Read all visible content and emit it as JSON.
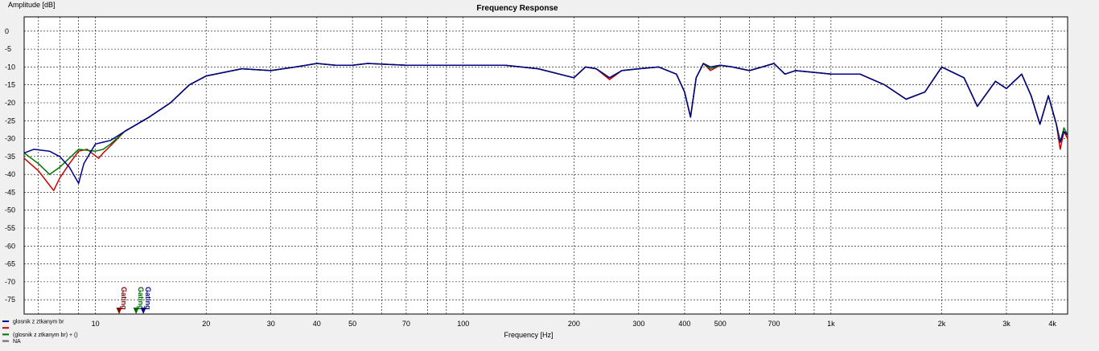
{
  "chart_data": {
    "type": "line",
    "title": "Frequency Response",
    "xlabel": "Frequency [Hz]",
    "ylabel": "Amplitude [dB]",
    "x_scale": "log",
    "xlim": [
      6.4,
      4400
    ],
    "ylim": [
      -79,
      4
    ],
    "grid": true,
    "x_tick_labels": [
      {
        "x": 10,
        "label": "10"
      },
      {
        "x": 20,
        "label": "20"
      },
      {
        "x": 30,
        "label": "30"
      },
      {
        "x": 40,
        "label": "40"
      },
      {
        "x": 50,
        "label": "50"
      },
      {
        "x": 70,
        "label": "70"
      },
      {
        "x": 100,
        "label": "100"
      },
      {
        "x": 200,
        "label": "200"
      },
      {
        "x": 300,
        "label": "300"
      },
      {
        "x": 400,
        "label": "400"
      },
      {
        "x": 500,
        "label": "500"
      },
      {
        "x": 700,
        "label": "700"
      },
      {
        "x": 1000,
        "label": "1k"
      },
      {
        "x": 2000,
        "label": "2k"
      },
      {
        "x": 3000,
        "label": "3k"
      },
      {
        "x": 4000,
        "label": "4k"
      }
    ],
    "y_ticks": [
      0,
      -5,
      -10,
      -15,
      -20,
      -25,
      -30,
      -35,
      -40,
      -45,
      -50,
      -55,
      -60,
      -65,
      -70,
      -75
    ],
    "series": [
      {
        "name": "",
        "color": "#cc0000",
        "points": [
          [
            6.4,
            -35.5
          ],
          [
            7,
            -39
          ],
          [
            7.5,
            -43
          ],
          [
            7.7,
            -44.5
          ],
          [
            8,
            -41
          ],
          [
            8.5,
            -37
          ],
          [
            9,
            -33.5
          ],
          [
            9.5,
            -33
          ],
          [
            10.2,
            -35.5
          ],
          [
            10.5,
            -34
          ],
          [
            11,
            -32
          ],
          [
            12,
            -28
          ],
          [
            14,
            -24
          ],
          [
            16,
            -20
          ],
          [
            18,
            -15
          ],
          [
            20,
            -12.5
          ],
          [
            25,
            -10.5
          ],
          [
            30,
            -11
          ],
          [
            35,
            -10
          ],
          [
            40,
            -9
          ],
          [
            45,
            -9.5
          ],
          [
            50,
            -9.5
          ],
          [
            55,
            -9
          ],
          [
            70,
            -9.5
          ],
          [
            100,
            -9.5
          ],
          [
            130,
            -9.5
          ],
          [
            160,
            -10.5
          ],
          [
            200,
            -13
          ],
          [
            215,
            -10
          ],
          [
            230,
            -10.5
          ],
          [
            250,
            -13.5
          ],
          [
            270,
            -11
          ],
          [
            300,
            -10.5
          ],
          [
            340,
            -10
          ],
          [
            380,
            -12
          ],
          [
            400,
            -17
          ],
          [
            415,
            -24
          ],
          [
            430,
            -13
          ],
          [
            450,
            -9
          ],
          [
            470,
            -11
          ],
          [
            500,
            -9.5
          ],
          [
            540,
            -10
          ],
          [
            600,
            -11
          ],
          [
            650,
            -10
          ],
          [
            700,
            -9
          ],
          [
            750,
            -12
          ],
          [
            800,
            -11
          ],
          [
            900,
            -11.5
          ],
          [
            1000,
            -12
          ],
          [
            1200,
            -12
          ],
          [
            1400,
            -15
          ],
          [
            1600,
            -19
          ],
          [
            1800,
            -17
          ],
          [
            2000,
            -10
          ],
          [
            2300,
            -13
          ],
          [
            2500,
            -21
          ],
          [
            2800,
            -14
          ],
          [
            3000,
            -16
          ],
          [
            3300,
            -12
          ],
          [
            3500,
            -18
          ],
          [
            3700,
            -26
          ],
          [
            3900,
            -18
          ],
          [
            4100,
            -26
          ],
          [
            4200,
            -33
          ],
          [
            4300,
            -28
          ],
          [
            4400,
            -30
          ]
        ]
      },
      {
        "name": "(glosnik z ztkanym br) + ()",
        "color": "#007700",
        "points": [
          [
            6.4,
            -34
          ],
          [
            7,
            -37
          ],
          [
            7.5,
            -40
          ],
          [
            8,
            -38
          ],
          [
            9,
            -33
          ],
          [
            10,
            -33.5
          ],
          [
            10.5,
            -33
          ],
          [
            11,
            -31.5
          ],
          [
            12,
            -28
          ],
          [
            14,
            -24
          ],
          [
            16,
            -20
          ],
          [
            18,
            -15
          ],
          [
            20,
            -12.5
          ],
          [
            25,
            -10.5
          ],
          [
            30,
            -11
          ],
          [
            35,
            -10
          ],
          [
            40,
            -9
          ],
          [
            45,
            -9.5
          ],
          [
            50,
            -9.5
          ],
          [
            55,
            -9
          ],
          [
            70,
            -9.5
          ],
          [
            100,
            -9.5
          ],
          [
            130,
            -9.5
          ],
          [
            160,
            -10.5
          ],
          [
            200,
            -13
          ],
          [
            215,
            -10
          ],
          [
            230,
            -10.5
          ],
          [
            250,
            -13
          ],
          [
            270,
            -11
          ],
          [
            300,
            -10.5
          ],
          [
            340,
            -10
          ],
          [
            380,
            -12
          ],
          [
            400,
            -17
          ],
          [
            415,
            -24
          ],
          [
            430,
            -13
          ],
          [
            450,
            -9
          ],
          [
            470,
            -10.5
          ],
          [
            500,
            -9.5
          ],
          [
            540,
            -10
          ],
          [
            600,
            -11
          ],
          [
            650,
            -10
          ],
          [
            700,
            -9
          ],
          [
            750,
            -12
          ],
          [
            800,
            -11
          ],
          [
            900,
            -11.5
          ],
          [
            1000,
            -12
          ],
          [
            1200,
            -12
          ],
          [
            1400,
            -15
          ],
          [
            1600,
            -19
          ],
          [
            1800,
            -17
          ],
          [
            2000,
            -10
          ],
          [
            2300,
            -13
          ],
          [
            2500,
            -21
          ],
          [
            2800,
            -14
          ],
          [
            3000,
            -16
          ],
          [
            3300,
            -12
          ],
          [
            3500,
            -18
          ],
          [
            3700,
            -26
          ],
          [
            3900,
            -18
          ],
          [
            4100,
            -26
          ],
          [
            4200,
            -31
          ],
          [
            4300,
            -27
          ],
          [
            4400,
            -29
          ]
        ]
      },
      {
        "name": "glosnik z ztkanym br",
        "color": "#00008b",
        "points": [
          [
            6.4,
            -34
          ],
          [
            6.8,
            -33
          ],
          [
            7.5,
            -33.5
          ],
          [
            8,
            -35
          ],
          [
            8.5,
            -38
          ],
          [
            9,
            -42.5
          ],
          [
            9.3,
            -37
          ],
          [
            10,
            -31.5
          ],
          [
            11,
            -30.5
          ],
          [
            12,
            -28
          ],
          [
            14,
            -24
          ],
          [
            16,
            -20
          ],
          [
            18,
            -15
          ],
          [
            20,
            -12.5
          ],
          [
            25,
            -10.5
          ],
          [
            30,
            -11
          ],
          [
            35,
            -10
          ],
          [
            40,
            -9
          ],
          [
            45,
            -9.5
          ],
          [
            50,
            -9.5
          ],
          [
            55,
            -9
          ],
          [
            70,
            -9.5
          ],
          [
            100,
            -9.5
          ],
          [
            130,
            -9.5
          ],
          [
            160,
            -10.5
          ],
          [
            200,
            -13
          ],
          [
            215,
            -10
          ],
          [
            230,
            -10.5
          ],
          [
            250,
            -13
          ],
          [
            270,
            -11
          ],
          [
            300,
            -10.5
          ],
          [
            340,
            -10
          ],
          [
            380,
            -12
          ],
          [
            400,
            -17
          ],
          [
            415,
            -24
          ],
          [
            430,
            -13
          ],
          [
            450,
            -9
          ],
          [
            470,
            -10
          ],
          [
            500,
            -9.5
          ],
          [
            540,
            -10
          ],
          [
            600,
            -11
          ],
          [
            650,
            -10
          ],
          [
            700,
            -9
          ],
          [
            750,
            -12
          ],
          [
            800,
            -11
          ],
          [
            900,
            -11.5
          ],
          [
            1000,
            -12
          ],
          [
            1200,
            -12
          ],
          [
            1400,
            -15
          ],
          [
            1600,
            -19
          ],
          [
            1800,
            -17
          ],
          [
            2000,
            -10
          ],
          [
            2300,
            -13
          ],
          [
            2500,
            -21
          ],
          [
            2800,
            -14
          ],
          [
            3000,
            -16
          ],
          [
            3300,
            -12
          ],
          [
            3500,
            -18
          ],
          [
            3700,
            -26
          ],
          [
            3900,
            -18
          ],
          [
            4100,
            -26
          ],
          [
            4200,
            -31
          ],
          [
            4300,
            -28
          ],
          [
            4400,
            -29
          ]
        ]
      }
    ],
    "gating_markers": [
      {
        "label": "Gating",
        "x": 11.6,
        "color": "#8b0000"
      },
      {
        "label": "Gating",
        "x": 12.9,
        "color": "#006400"
      },
      {
        "label": "Gating",
        "x": 13.5,
        "color": "#00008b"
      }
    ],
    "legend": {
      "placement": "bottom-left",
      "entries": [
        {
          "label": "glosnik z ztkanym br",
          "color": "#00008b"
        },
        {
          "label": "",
          "color": "#cc0000"
        },
        {
          "label": "(glosnik z ztkanym br) + ()",
          "color": "#007700"
        },
        {
          "label": "NA",
          "color": "#666666"
        }
      ]
    }
  }
}
